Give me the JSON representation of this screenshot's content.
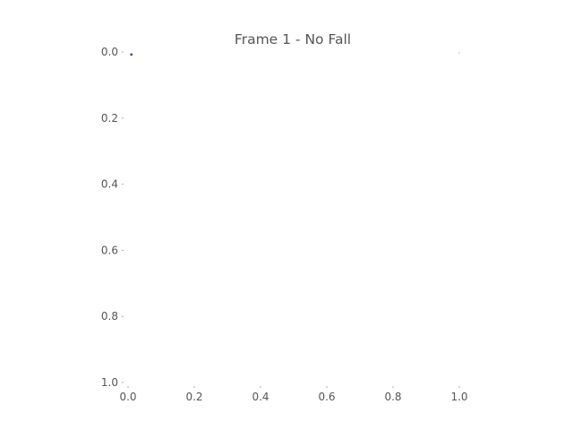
{
  "chart_data": {
    "type": "scatter",
    "title": "Frame 1 - No Fall",
    "xlabel": "",
    "ylabel": "",
    "xlim": [
      0.0,
      1.0
    ],
    "ylim": [
      1.0,
      0.0
    ],
    "y_inverted": true,
    "grid": false,
    "x_ticks": [
      "0.0",
      "0.2",
      "0.4",
      "0.6",
      "0.8",
      "1.0"
    ],
    "y_ticks": [
      "0.0",
      "0.2",
      "0.4",
      "0.6",
      "0.8",
      "1.0"
    ],
    "series": [
      {
        "points": [
          {
            "x": 0.01,
            "y": 0.005
          },
          {
            "x": 1.0,
            "y": 0.0
          }
        ],
        "colors": [
          "#3030c0",
          "#bbbbbb"
        ]
      }
    ]
  }
}
